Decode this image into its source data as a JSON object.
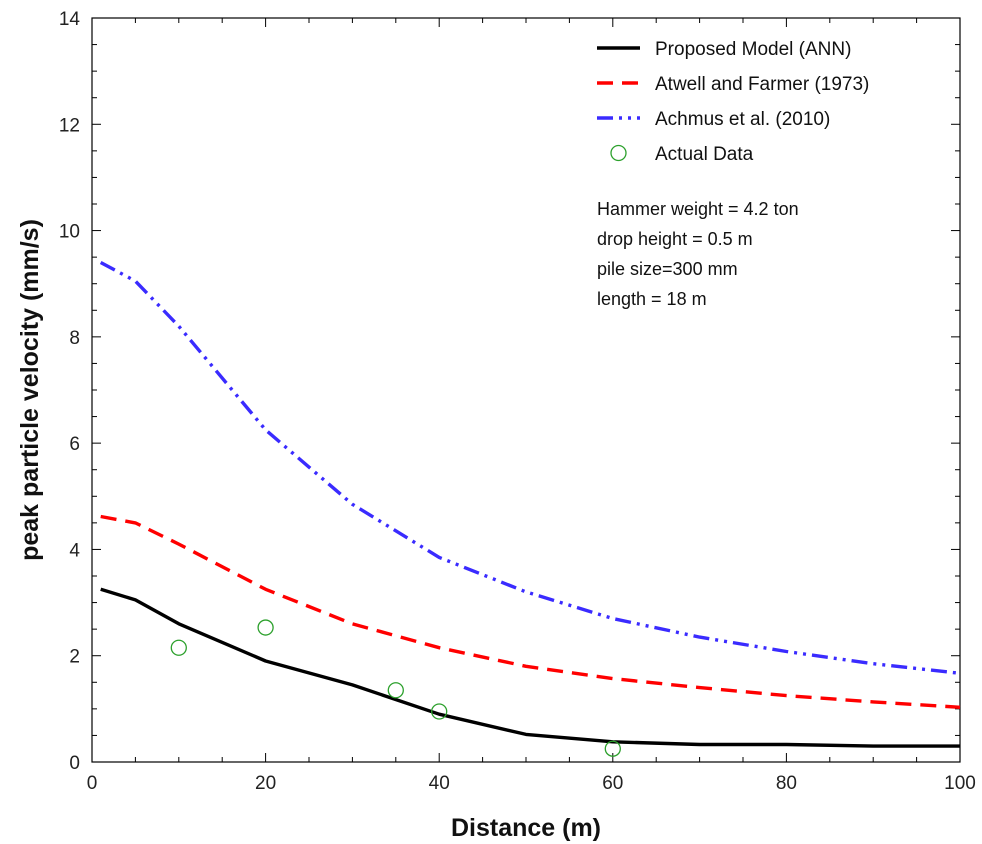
{
  "chart_data": {
    "type": "line",
    "xlabel": "Distance (m)",
    "ylabel": "peak particle velocity (mm/s)",
    "xlim": [
      0,
      100
    ],
    "ylim": [
      0,
      14
    ],
    "x_ticks": [
      0,
      20,
      40,
      60,
      80,
      100
    ],
    "y_ticks": [
      0,
      2,
      4,
      6,
      8,
      10,
      12,
      14
    ],
    "x_minor_step": 5,
    "y_minor_step": 0.5,
    "grid": false,
    "legend_position": "top-right",
    "series": [
      {
        "name": "Proposed Model (ANN)",
        "style": "solid",
        "color": "#000000",
        "x": [
          1,
          5,
          10,
          20,
          30,
          40,
          50,
          60,
          70,
          80,
          90,
          100
        ],
        "y": [
          3.25,
          3.05,
          2.6,
          1.9,
          1.45,
          0.9,
          0.52,
          0.38,
          0.33,
          0.33,
          0.3,
          0.3
        ]
      },
      {
        "name": "Atwell and Farmer (1973)",
        "style": "dashed",
        "color": "#ff0000",
        "x": [
          1,
          5,
          10,
          20,
          30,
          40,
          50,
          60,
          70,
          80,
          90,
          100
        ],
        "y": [
          4.62,
          4.5,
          4.1,
          3.25,
          2.6,
          2.15,
          1.8,
          1.57,
          1.4,
          1.25,
          1.13,
          1.03
        ]
      },
      {
        "name": "Achmus et al. (2010)",
        "style": "dash-dot-dot",
        "color": "#3a2bff",
        "x": [
          1,
          5,
          10,
          20,
          30,
          40,
          50,
          60,
          70,
          80,
          90,
          100
        ],
        "y": [
          9.4,
          9.05,
          8.2,
          6.25,
          4.85,
          3.85,
          3.2,
          2.7,
          2.35,
          2.08,
          1.85,
          1.67
        ]
      },
      {
        "name": "Actual Data",
        "style": "markers",
        "color": "#2ca02c",
        "x": [
          10,
          20,
          35,
          40,
          60
        ],
        "y": [
          2.15,
          2.53,
          1.35,
          0.95,
          0.25
        ]
      }
    ],
    "annotation": [
      "Hammer weight = 4.2 ton",
      "drop height = 0.5 m",
      "pile size=300 mm",
      "length = 18 m"
    ]
  }
}
